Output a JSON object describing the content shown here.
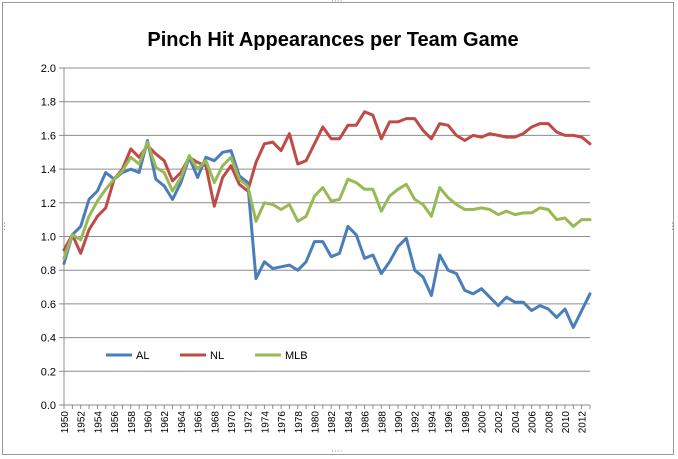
{
  "chart_data": {
    "type": "line",
    "title": "Pinch Hit Appearances per Team Game",
    "xlabel": "",
    "ylabel": "",
    "x": [
      1950,
      1951,
      1952,
      1953,
      1954,
      1955,
      1956,
      1957,
      1958,
      1959,
      1960,
      1961,
      1962,
      1963,
      1964,
      1965,
      1966,
      1967,
      1968,
      1969,
      1970,
      1971,
      1972,
      1973,
      1974,
      1975,
      1976,
      1977,
      1978,
      1979,
      1980,
      1981,
      1982,
      1983,
      1984,
      1985,
      1986,
      1987,
      1988,
      1989,
      1990,
      1991,
      1992,
      1993,
      1994,
      1995,
      1996,
      1997,
      1998,
      1999,
      2000,
      2001,
      2002,
      2003,
      2004,
      2005,
      2006,
      2007,
      2008,
      2009,
      2010,
      2011,
      2012,
      2013
    ],
    "x_tick_labels": [
      "1950",
      "1952",
      "1954",
      "1956",
      "1958",
      "1960",
      "1962",
      "1964",
      "1966",
      "1968",
      "1970",
      "1972",
      "1974",
      "1976",
      "1978",
      "1980",
      "1982",
      "1984",
      "1986",
      "1988",
      "1990",
      "1992",
      "1994",
      "1996",
      "1998",
      "2000",
      "2002",
      "2004",
      "2006",
      "2008",
      "2010",
      "2012"
    ],
    "y_tick_labels": [
      "0.0",
      "0.2",
      "0.4",
      "0.6",
      "0.8",
      "1.0",
      "1.2",
      "1.4",
      "1.6",
      "1.8",
      "2.0"
    ],
    "ylim": [
      0,
      2.0
    ],
    "grid": true,
    "legend_position": "bottom-left",
    "series": [
      {
        "name": "AL",
        "color": "#4a7ebb",
        "values": [
          0.84,
          1.01,
          1.06,
          1.22,
          1.27,
          1.38,
          1.34,
          1.38,
          1.4,
          1.38,
          1.57,
          1.34,
          1.3,
          1.22,
          1.32,
          1.47,
          1.35,
          1.47,
          1.45,
          1.5,
          1.51,
          1.36,
          1.32,
          0.75,
          0.85,
          0.81,
          0.82,
          0.83,
          0.8,
          0.85,
          0.97,
          0.97,
          0.88,
          0.9,
          1.06,
          1.01,
          0.87,
          0.89,
          0.78,
          0.85,
          0.94,
          0.99,
          0.8,
          0.76,
          0.65,
          0.89,
          0.8,
          0.78,
          0.68,
          0.66,
          0.69,
          0.64,
          0.59,
          0.64,
          0.61,
          0.61,
          0.56,
          0.59,
          0.57,
          0.52,
          0.57,
          0.46,
          0.56,
          0.66
        ]
      },
      {
        "name": "NL",
        "color": "#be4b48",
        "values": [
          0.92,
          1.01,
          0.9,
          1.04,
          1.12,
          1.17,
          1.34,
          1.4,
          1.52,
          1.47,
          1.54,
          1.49,
          1.45,
          1.33,
          1.38,
          1.47,
          1.44,
          1.42,
          1.18,
          1.35,
          1.42,
          1.31,
          1.27,
          1.44,
          1.55,
          1.56,
          1.51,
          1.61,
          1.43,
          1.45,
          1.55,
          1.65,
          1.58,
          1.58,
          1.66,
          1.66,
          1.74,
          1.72,
          1.58,
          1.68,
          1.68,
          1.7,
          1.7,
          1.63,
          1.58,
          1.67,
          1.66,
          1.6,
          1.57,
          1.6,
          1.59,
          1.61,
          1.6,
          1.59,
          1.59,
          1.61,
          1.65,
          1.67,
          1.67,
          1.62,
          1.6,
          1.6,
          1.59,
          1.55
        ]
      },
      {
        "name": "MLB",
        "color": "#98b954",
        "values": [
          0.87,
          1.01,
          0.98,
          1.12,
          1.21,
          1.28,
          1.34,
          1.39,
          1.47,
          1.43,
          1.56,
          1.41,
          1.38,
          1.27,
          1.35,
          1.48,
          1.4,
          1.45,
          1.32,
          1.42,
          1.47,
          1.34,
          1.3,
          1.09,
          1.2,
          1.19,
          1.16,
          1.19,
          1.09,
          1.12,
          1.24,
          1.29,
          1.21,
          1.22,
          1.34,
          1.32,
          1.28,
          1.28,
          1.15,
          1.24,
          1.28,
          1.31,
          1.22,
          1.19,
          1.12,
          1.29,
          1.23,
          1.19,
          1.16,
          1.16,
          1.17,
          1.16,
          1.13,
          1.15,
          1.13,
          1.14,
          1.14,
          1.17,
          1.16,
          1.1,
          1.11,
          1.06,
          1.1,
          1.1
        ]
      }
    ]
  }
}
